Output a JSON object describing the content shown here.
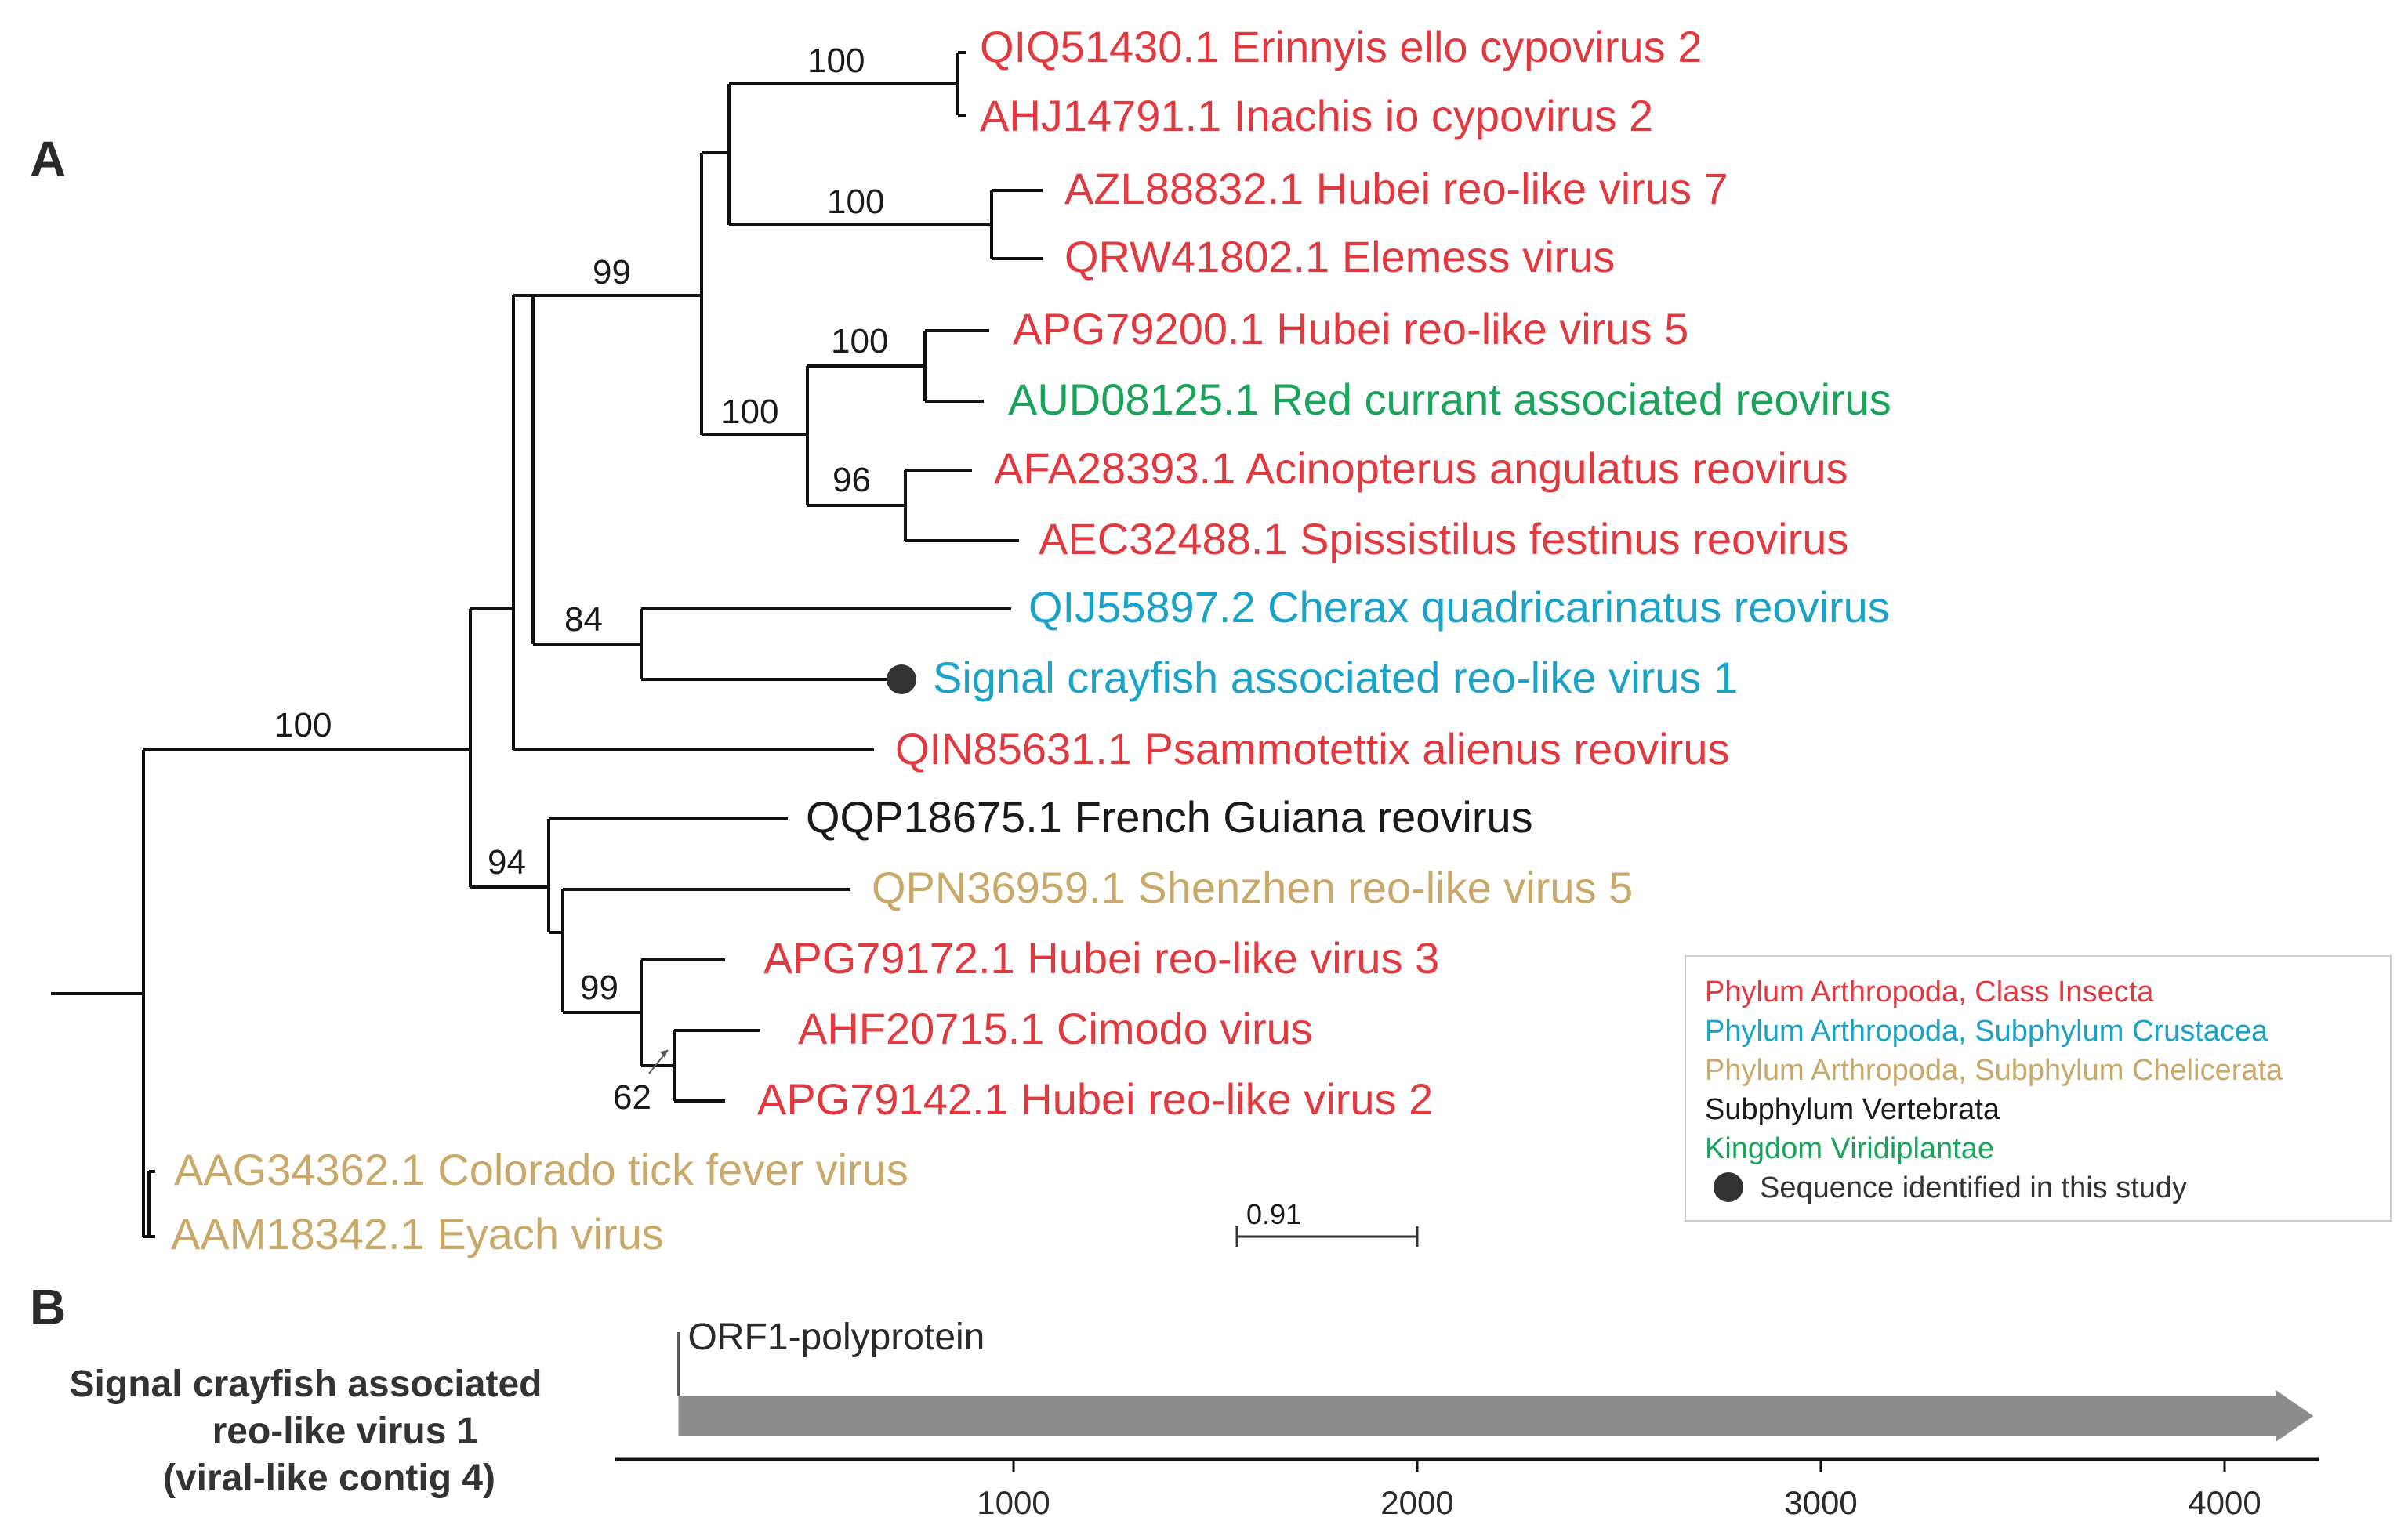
{
  "panels": {
    "a": "A",
    "b": "B"
  },
  "colors": {
    "insecta": "#e0393f",
    "crustacea": "#1aa3c6",
    "chelicerata": "#c9a96a",
    "vertebrata": "#1a1a1a",
    "viridiplantae": "#1aa35a",
    "branch": "#111111",
    "arrow": "#8c8c8c",
    "marker": "#333333"
  },
  "tree": {
    "taxa": [
      {
        "label": "QIQ51430.1 Erinnyis ello cypovirus 2",
        "group": "insecta"
      },
      {
        "label": "AHJ14791.1 Inachis io cypovirus 2",
        "group": "insecta"
      },
      {
        "label": "AZL88832.1 Hubei reo-like virus 7",
        "group": "insecta"
      },
      {
        "label": "QRW41802.1 Elemess virus",
        "group": "insecta"
      },
      {
        "label": "APG79200.1 Hubei reo-like virus 5",
        "group": "insecta"
      },
      {
        "label": "AUD08125.1 Red currant associated reovirus",
        "group": "viridiplantae"
      },
      {
        "label": "AFA28393.1 Acinopterus angulatus reovirus",
        "group": "insecta"
      },
      {
        "label": "AEC32488.1 Spissistilus festinus reovirus",
        "group": "insecta"
      },
      {
        "label": "QIJ55897.2 Cherax quadricarinatus reovirus",
        "group": "crustacea"
      },
      {
        "label": "Signal crayfish associated reo-like virus 1",
        "group": "crustacea"
      },
      {
        "label": "QIN85631.1 Psammotettix alienus reovirus",
        "group": "insecta"
      },
      {
        "label": "QQP18675.1 French Guiana reovirus",
        "group": "vertebrata"
      },
      {
        "label": "QPN36959.1 Shenzhen reo-like virus 5",
        "group": "chelicerata"
      },
      {
        "label": "APG79172.1 Hubei reo-like virus 3",
        "group": "insecta"
      },
      {
        "label": "AHF20715.1 Cimodo virus",
        "group": "insecta"
      },
      {
        "label": "APG79142.1 Hubei reo-like virus 2",
        "group": "insecta"
      },
      {
        "label": "AAG34362.1 Colorado tick fever virus",
        "group": "chelicerata"
      },
      {
        "label": "AAM18342.1 Eyach virus",
        "group": "chelicerata"
      }
    ],
    "bootstrap": [
      "100",
      "100",
      "99",
      "100",
      "100",
      "96",
      "84",
      "100",
      "94",
      "99",
      "62"
    ],
    "scale_bar": "0.91"
  },
  "legend": {
    "items": [
      {
        "label": "Phylum Arthropoda, Class Insecta",
        "group": "insecta"
      },
      {
        "label": "Phylum Arthropoda, Subphylum Crustacea",
        "group": "crustacea"
      },
      {
        "label": "Phylum Arthropoda, Subphylum Chelicerata",
        "group": "chelicerata"
      },
      {
        "label": "Subphylum Vertebrata",
        "group": "vertebrata"
      },
      {
        "label": "Kingdom Viridiplantae",
        "group": "viridiplantae"
      }
    ],
    "marker_label": "Sequence identified in this study"
  },
  "genome": {
    "title_lines": [
      "Signal crayfish associated",
      "reo-like virus 1",
      "(viral-like contig 4)"
    ],
    "orf_label": "ORF1-polyprotein",
    "axis_ticks": [
      1000,
      2000,
      3000,
      4000
    ],
    "orf_start": 170,
    "orf_end": 4220,
    "axis_min": 160,
    "axis_max": 4240
  }
}
